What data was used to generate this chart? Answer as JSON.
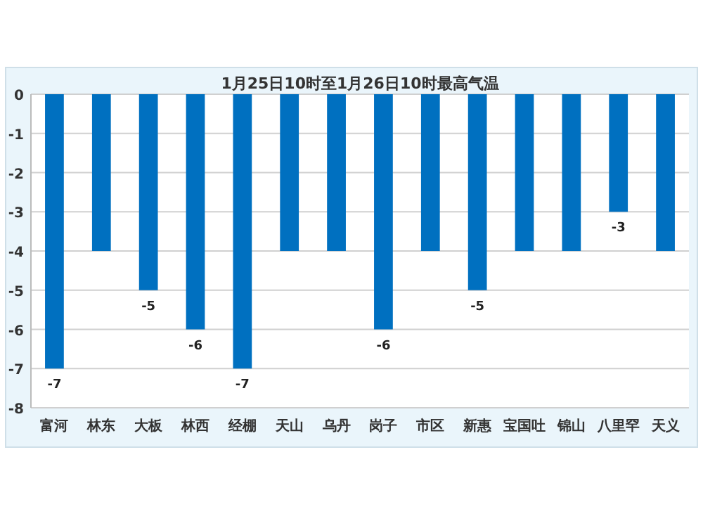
{
  "chart_data": {
    "type": "bar",
    "title": "1月25日10时至1月26日10时最高气温",
    "categories": [
      "富河",
      "林东",
      "大板",
      "林西",
      "经棚",
      "天山",
      "乌丹",
      "岗子",
      "市区",
      "新惠",
      "宝国吐",
      "锦山",
      "八里罕",
      "天义"
    ],
    "values": [
      -7,
      -4,
      -5,
      -6,
      -7,
      -4,
      -4,
      -6,
      -4,
      -5,
      -4,
      -4,
      -3,
      -4
    ],
    "value_labels": [
      "-7",
      null,
      "-5",
      "-6",
      "-7",
      null,
      null,
      "-6",
      null,
      "-5",
      null,
      null,
      "-3",
      null
    ],
    "color": "#0070c0",
    "ylim": [
      -8,
      0
    ],
    "yticks": [
      0,
      -1,
      -2,
      -3,
      -4,
      -5,
      -6,
      -7,
      -8
    ],
    "grid": "y"
  }
}
